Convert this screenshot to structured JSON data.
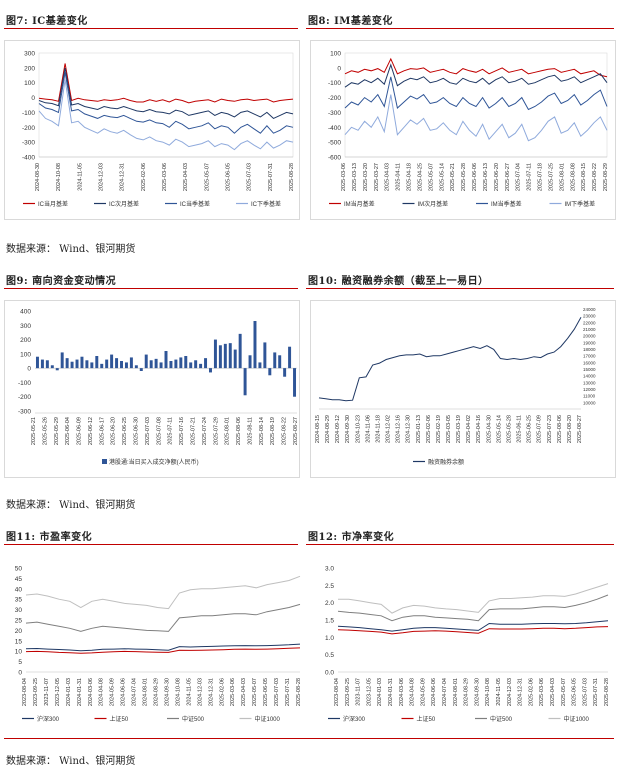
{
  "captions": {
    "fig7": "图7: IC基差变化",
    "fig8": "图8: IM基差变化",
    "fig9": "图9: 南向资金变动情况",
    "fig10": "图10: 融资融券余额（截至上一易日）",
    "fig11": "图11: 市盈率变化",
    "fig12": "图12: 市净率变化"
  },
  "sources": [
    "数据来源： Wind、银河期货",
    "数据来源： Wind、银河期货",
    "数据来源： Wind、银河期货"
  ],
  "colors": {
    "red": "#c00000",
    "navy": "#1f3864",
    "blue": "#2f5597",
    "light": "#8faadc",
    "gray": "#a6a6a6"
  },
  "chart_data": [
    {
      "id": "ic_basis",
      "type": "line",
      "x_ticks": [
        "2024-08-30",
        "2024-10-08",
        "2024-11-05",
        "2024-12-03",
        "2024-12-31",
        "2025-02-06",
        "2025-03-06",
        "2025-04-03",
        "2025-05-07",
        "2025-06-05",
        "2025-07-03",
        "2025-07-31",
        "2025-08-28"
      ],
      "ylim": [
        -400,
        300
      ],
      "y_ticks": [
        300,
        200,
        100,
        0,
        -100,
        -200,
        -300,
        -400
      ],
      "series": [
        {
          "name": "IC当月基差",
          "color": "#c00000",
          "values": [
            -5,
            -10,
            -15,
            -25,
            230,
            -20,
            -5,
            -15,
            -20,
            -25,
            -15,
            -20,
            -15,
            -5,
            -20,
            -30,
            -30,
            -15,
            -25,
            -15,
            -30,
            -10,
            -20,
            -35,
            -25,
            -20,
            -15,
            -30,
            -10,
            -20,
            -25,
            -15,
            -10,
            -20,
            -15,
            -10,
            -30,
            -20,
            -15,
            -10
          ]
        },
        {
          "name": "IC次月基差",
          "color": "#1f3864",
          "values": [
            -20,
            -35,
            -40,
            -55,
            200,
            -50,
            -40,
            -60,
            -70,
            -80,
            -60,
            -70,
            -75,
            -60,
            -75,
            -90,
            -95,
            -80,
            -95,
            -100,
            -110,
            -85,
            -95,
            -120,
            -110,
            -100,
            -90,
            -120,
            -100,
            -110,
            -130,
            -100,
            -90,
            -110,
            -130,
            -100,
            -140,
            -120,
            -100,
            -110
          ]
        },
        {
          "name": "IC当季基差",
          "color": "#2f5597",
          "values": [
            -40,
            -70,
            -80,
            -100,
            170,
            -90,
            -80,
            -110,
            -125,
            -140,
            -120,
            -130,
            -135,
            -120,
            -140,
            -160,
            -165,
            -150,
            -170,
            -175,
            -200,
            -160,
            -180,
            -210,
            -200,
            -190,
            -170,
            -210,
            -190,
            -200,
            -240,
            -200,
            -180,
            -210,
            -240,
            -190,
            -240,
            -220,
            -190,
            -200
          ]
        },
        {
          "name": "IC下季基差",
          "color": "#8faadc",
          "values": [
            -90,
            -140,
            -160,
            -190,
            120,
            -170,
            -160,
            -200,
            -220,
            -240,
            -210,
            -230,
            -240,
            -220,
            -250,
            -275,
            -285,
            -265,
            -290,
            -300,
            -320,
            -280,
            -300,
            -330,
            -320,
            -310,
            -290,
            -330,
            -310,
            -320,
            -350,
            -310,
            -290,
            -320,
            -345,
            -300,
            -340,
            -320,
            -290,
            -300
          ]
        }
      ]
    },
    {
      "id": "im_basis",
      "type": "line",
      "x_ticks": [
        "2025-03-06",
        "2025-03-13",
        "2025-03-20",
        "2025-03-27",
        "2025-04-03",
        "2025-04-11",
        "2025-04-18",
        "2025-04-25",
        "2025-05-07",
        "2025-05-14",
        "2025-05-21",
        "2025-05-28",
        "2025-06-06",
        "2025-06-13",
        "2025-06-20",
        "2025-06-27",
        "2025-07-04",
        "2025-07-11",
        "2025-07-18",
        "2025-07-25",
        "2025-08-01",
        "2025-08-08",
        "2025-08-15",
        "2025-08-22",
        "2025-08-29"
      ],
      "ylim": [
        -600,
        100
      ],
      "y_ticks": [
        100,
        0,
        -100,
        -200,
        -300,
        -400,
        -500,
        -600
      ],
      "series": [
        {
          "name": "IM当月基差",
          "color": "#c00000",
          "values": [
            -40,
            -20,
            -30,
            -10,
            -20,
            -5,
            -30,
            60,
            -40,
            -20,
            -5,
            -10,
            0,
            -30,
            -20,
            -10,
            -30,
            -40,
            -5,
            -20,
            -30,
            -10,
            -40,
            -20,
            0,
            -30,
            -20,
            -10,
            -40,
            -30,
            -20,
            -10,
            -5,
            -30,
            -20,
            -10,
            -40,
            -30,
            -20,
            -50,
            -60
          ]
        },
        {
          "name": "IM次月基差",
          "color": "#1f3864",
          "values": [
            -130,
            -100,
            -110,
            -80,
            -100,
            -70,
            -110,
            20,
            -120,
            -90,
            -70,
            -80,
            -60,
            -100,
            -90,
            -70,
            -100,
            -110,
            -70,
            -90,
            -100,
            -70,
            -110,
            -80,
            -60,
            -100,
            -90,
            -70,
            -110,
            -100,
            -80,
            -60,
            -50,
            -90,
            -80,
            -60,
            -100,
            -80,
            -60,
            -40,
            -100
          ]
        },
        {
          "name": "IM当季基差",
          "color": "#2f5597",
          "values": [
            -270,
            -230,
            -250,
            -200,
            -230,
            -180,
            -260,
            -60,
            -270,
            -230,
            -190,
            -210,
            -180,
            -240,
            -230,
            -200,
            -240,
            -260,
            -200,
            -240,
            -260,
            -200,
            -270,
            -240,
            -200,
            -260,
            -240,
            -200,
            -280,
            -260,
            -230,
            -190,
            -170,
            -240,
            -220,
            -180,
            -250,
            -220,
            -180,
            -150,
            -260
          ]
        },
        {
          "name": "IM下季基差",
          "color": "#8faadc",
          "values": [
            -450,
            -400,
            -420,
            -360,
            -400,
            -330,
            -430,
            -180,
            -450,
            -400,
            -350,
            -380,
            -340,
            -420,
            -410,
            -370,
            -420,
            -450,
            -360,
            -420,
            -460,
            -380,
            -480,
            -430,
            -380,
            -470,
            -440,
            -380,
            -490,
            -470,
            -420,
            -360,
            -330,
            -440,
            -420,
            -370,
            -460,
            -420,
            -370,
            -330,
            -420
          ]
        }
      ]
    },
    {
      "id": "southbound",
      "type": "bar",
      "x_ticks": [
        "2025-05-21",
        "2025-05-26",
        "2025-05-29",
        "2025-06-04",
        "2025-06-09",
        "2025-06-12",
        "2025-06-17",
        "2025-06-20",
        "2025-06-25",
        "2025-06-30",
        "2025-07-03",
        "2025-07-08",
        "2025-07-11",
        "2025-07-16",
        "2025-07-21",
        "2025-07-24",
        "2025-07-29",
        "2025-08-01",
        "2025-08-06",
        "2025-08-11",
        "2025-08-14",
        "2025-08-19",
        "2025-08-22",
        "2025-08-27"
      ],
      "ylim": [
        -300,
        400
      ],
      "y_ticks": [
        400,
        300,
        200,
        100,
        0,
        -100,
        -200,
        -300
      ],
      "series": [
        {
          "name": "港股通:当日买入成交净额(人民币)",
          "color": "#2f5597",
          "values": [
            80,
            60,
            55,
            20,
            -15,
            110,
            70,
            45,
            60,
            80,
            55,
            40,
            85,
            30,
            60,
            95,
            70,
            50,
            40,
            75,
            20,
            -20,
            95,
            55,
            65,
            40,
            120,
            50,
            60,
            75,
            85,
            40,
            55,
            30,
            70,
            -30,
            200,
            160,
            170,
            175,
            130,
            240,
            -190,
            90,
            330,
            40,
            180,
            -50,
            110,
            90,
            -60,
            150,
            -200
          ]
        }
      ]
    },
    {
      "id": "margin",
      "type": "line",
      "x_ticks": [
        "2024-08-15",
        "2024-08-29",
        "2024-09-12",
        "2024-09-30",
        "2024-10-23",
        "2024-11-06",
        "2024-11-18",
        "2024-12-02",
        "2024-12-16",
        "2024-12-30",
        "2025-01-13",
        "2025-02-06",
        "2025-02-19",
        "2025-03-05",
        "2025-03-19",
        "2025-04-02",
        "2025-04-16",
        "2025-04-30",
        "2025-05-14",
        "2025-05-28",
        "2025-06-11",
        "2025-06-25",
        "2025-07-09",
        "2025-07-23",
        "2025-08-06",
        "2025-08-20",
        "2025-08-27"
      ],
      "series": [
        {
          "name": "融资融券余额",
          "color": "#1f3864",
          "values": [
            14000,
            13900,
            13800,
            13800,
            13700,
            13750,
            16200,
            16300,
            17600,
            17800,
            18200,
            18400,
            18600,
            18700,
            18700,
            18800,
            18500,
            18600,
            18600,
            18800,
            19000,
            19200,
            19400,
            19600,
            19400,
            19700,
            19300,
            18300,
            18200,
            18300,
            18200,
            18300,
            18500,
            18400,
            18800,
            19000,
            19600,
            20500,
            21500,
            22800
          ]
        }
      ]
    },
    {
      "id": "pe",
      "type": "line",
      "x_ticks": [
        "2023-08-04",
        "2023-09-25",
        "2023-11-07",
        "2023-12-05",
        "2024-01-03",
        "2024-01-31",
        "2024-03-06",
        "2024-04-08",
        "2024-05-09",
        "2024-06-06",
        "2024-07-04",
        "2024-08-01",
        "2024-08-29",
        "2024-09-30",
        "2024-10-08",
        "2024-11-05",
        "2024-12-03",
        "2024-12-31",
        "2025-02-06",
        "2025-03-06",
        "2025-04-03",
        "2025-05-07",
        "2025-06-05",
        "2025-07-03",
        "2025-07-31",
        "2025-08-28"
      ],
      "ylim": [
        0,
        50
      ],
      "y_ticks": [
        50,
        45,
        40,
        35,
        30,
        25,
        20,
        15,
        10,
        5,
        0
      ],
      "series": [
        {
          "name": "沪深300",
          "color": "#1f3864",
          "values": [
            11.2,
            11.3,
            11.0,
            10.8,
            10.6,
            10.2,
            10.5,
            10.9,
            11.0,
            11.2,
            11.0,
            10.9,
            10.7,
            10.5,
            12.2,
            12.0,
            12.2,
            12.3,
            12.5,
            12.6,
            12.7,
            12.6,
            12.7,
            12.9,
            13.1,
            13.4
          ]
        },
        {
          "name": "上证50",
          "color": "#c00000",
          "values": [
            9.8,
            9.9,
            9.7,
            9.4,
            9.3,
            9.0,
            9.2,
            9.5,
            9.7,
            9.9,
            9.8,
            9.6,
            9.5,
            9.4,
            10.5,
            10.4,
            10.5,
            10.6,
            10.7,
            10.9,
            11.0,
            10.9,
            11.0,
            11.2,
            11.4,
            11.6
          ]
        },
        {
          "name": "中证500",
          "color": "#7f7f7f",
          "values": [
            23.5,
            24.0,
            23.0,
            22.0,
            21.0,
            19.5,
            21.0,
            22.0,
            21.5,
            21.0,
            20.5,
            20.0,
            19.8,
            19.5,
            26.0,
            26.5,
            27.0,
            27.0,
            27.5,
            28.0,
            28.0,
            27.5,
            29.0,
            30.0,
            31.0,
            32.5
          ]
        },
        {
          "name": "中证1000",
          "color": "#bfbfbf",
          "values": [
            37.0,
            37.5,
            36.5,
            35.0,
            34.0,
            31.0,
            34.0,
            35.0,
            34.0,
            33.0,
            32.5,
            32.0,
            31.0,
            30.5,
            38.0,
            39.5,
            40.0,
            40.0,
            40.5,
            41.0,
            41.5,
            40.5,
            42.0,
            43.0,
            44.0,
            46.0
          ]
        }
      ]
    },
    {
      "id": "pb",
      "type": "line",
      "x_ticks": [
        "2023-08-04",
        "2023-09-25",
        "2023-11-07",
        "2023-12-05",
        "2024-01-03",
        "2024-01-31",
        "2024-03-06",
        "2024-04-08",
        "2024-05-09",
        "2024-06-06",
        "2024-07-04",
        "2024-08-01",
        "2024-08-29",
        "2024-09-30",
        "2024-10-08",
        "2024-11-05",
        "2024-12-03",
        "2024-12-31",
        "2025-02-06",
        "2025-03-06",
        "2025-04-03",
        "2025-05-07",
        "2025-06-05",
        "2025-07-03",
        "2025-07-31",
        "2025-08-28"
      ],
      "ylim": [
        0,
        3
      ],
      "y_ticks": [
        3.0,
        2.5,
        2.0,
        1.5,
        1.0,
        0.5,
        0.0
      ],
      "series": [
        {
          "name": "沪深300",
          "color": "#1f3864",
          "values": [
            1.32,
            1.3,
            1.28,
            1.25,
            1.22,
            1.18,
            1.22,
            1.26,
            1.28,
            1.28,
            1.26,
            1.24,
            1.22,
            1.2,
            1.4,
            1.38,
            1.38,
            1.38,
            1.39,
            1.4,
            1.4,
            1.39,
            1.4,
            1.42,
            1.45,
            1.48
          ]
        },
        {
          "name": "上证50",
          "color": "#c00000",
          "values": [
            1.22,
            1.21,
            1.19,
            1.17,
            1.15,
            1.1,
            1.13,
            1.17,
            1.18,
            1.19,
            1.18,
            1.16,
            1.14,
            1.12,
            1.25,
            1.24,
            1.24,
            1.24,
            1.25,
            1.26,
            1.26,
            1.25,
            1.26,
            1.28,
            1.3,
            1.31
          ]
        },
        {
          "name": "中证500",
          "color": "#7f7f7f",
          "values": [
            1.75,
            1.72,
            1.7,
            1.66,
            1.62,
            1.48,
            1.58,
            1.62,
            1.62,
            1.58,
            1.56,
            1.54,
            1.52,
            1.48,
            1.8,
            1.82,
            1.82,
            1.82,
            1.85,
            1.88,
            1.88,
            1.86,
            1.92,
            2.0,
            2.1,
            2.22
          ]
        },
        {
          "name": "中证1000",
          "color": "#bfbfbf",
          "values": [
            2.1,
            2.1,
            2.05,
            2.0,
            1.95,
            1.7,
            1.85,
            1.92,
            1.9,
            1.85,
            1.82,
            1.8,
            1.76,
            1.72,
            2.05,
            2.12,
            2.12,
            2.14,
            2.16,
            2.2,
            2.2,
            2.18,
            2.25,
            2.35,
            2.45,
            2.55
          ]
        }
      ]
    }
  ]
}
